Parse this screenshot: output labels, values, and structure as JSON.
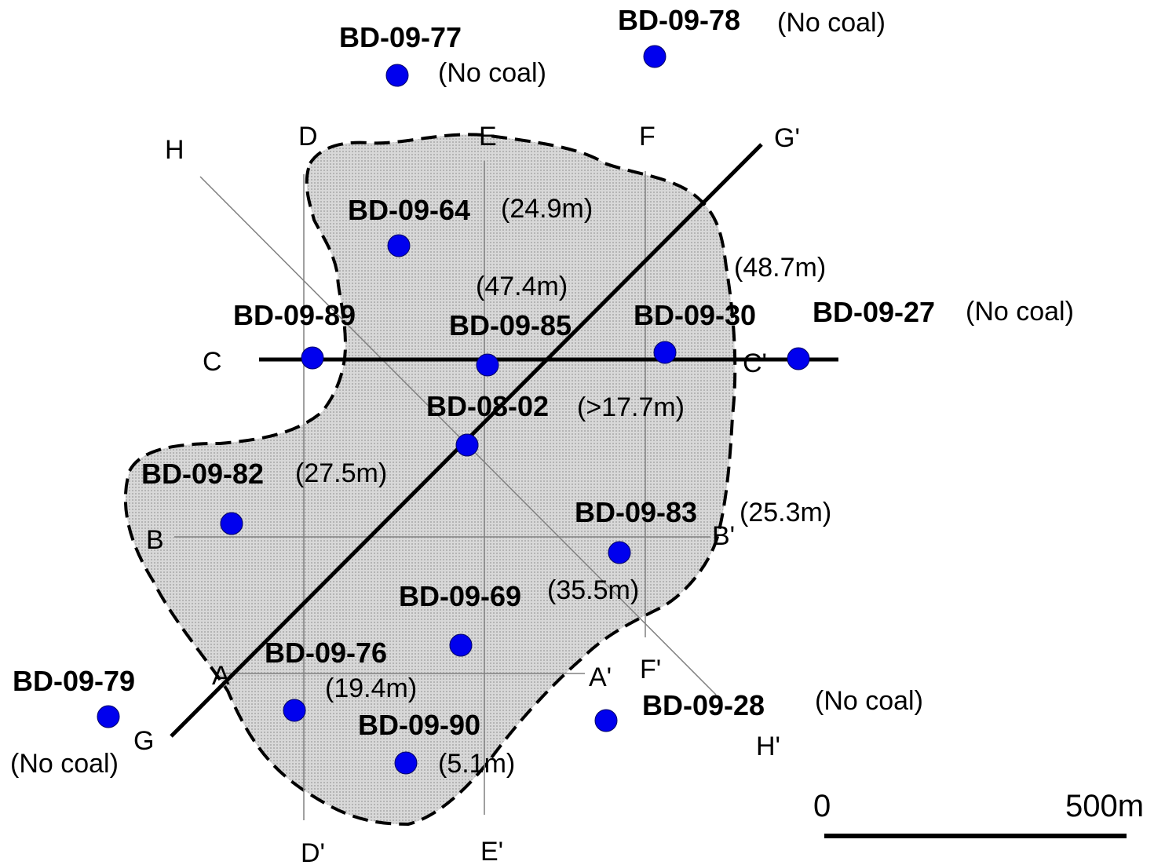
{
  "colors": {
    "borehole": "#0000ee",
    "coal_area_fill": "#d0d0d0",
    "outline": "#000000",
    "section_thin": "#808080"
  },
  "icons": {
    "borehole": "filled-blue-circle"
  },
  "boreholes": [
    {
      "id": "BD-09-77",
      "note": "(No coal)"
    },
    {
      "id": "BD-09-78",
      "note": "(No coal)"
    },
    {
      "id": "BD-09-64",
      "note": "(24.9m)"
    },
    {
      "id": "BD-09-89",
      "note": ""
    },
    {
      "id": "BD-09-85",
      "note": "(47.4m)"
    },
    {
      "id": "BD-09-30",
      "note": "(48.7m)"
    },
    {
      "id": "BD-09-27",
      "note": "(No coal)"
    },
    {
      "id": "BD-08-02",
      "note": "(>17.7m)"
    },
    {
      "id": "BD-09-82",
      "note": "(27.5m)"
    },
    {
      "id": "BD-09-83",
      "note": "(25.3m)"
    },
    {
      "id": "BD-09-69",
      "note": "(35.5m)"
    },
    {
      "id": "BD-09-76",
      "note": "(19.4m)"
    },
    {
      "id": "BD-09-79",
      "note": "(No coal)"
    },
    {
      "id": "BD-09-90",
      "note": "(5.1m)"
    },
    {
      "id": "BD-09-28",
      "note": "(No coal)"
    }
  ],
  "sections": [
    {
      "start": "A",
      "end": "A'"
    },
    {
      "start": "B",
      "end": "B'"
    },
    {
      "start": "C",
      "end": "C'"
    },
    {
      "start": "D",
      "end": "D'"
    },
    {
      "start": "E",
      "end": "E'"
    },
    {
      "start": "F",
      "end": "F'"
    },
    {
      "start": "G",
      "end": "G'"
    },
    {
      "start": "H",
      "end": "H'"
    }
  ],
  "scale_bar": {
    "start_label": "0",
    "end_label": "500m"
  }
}
